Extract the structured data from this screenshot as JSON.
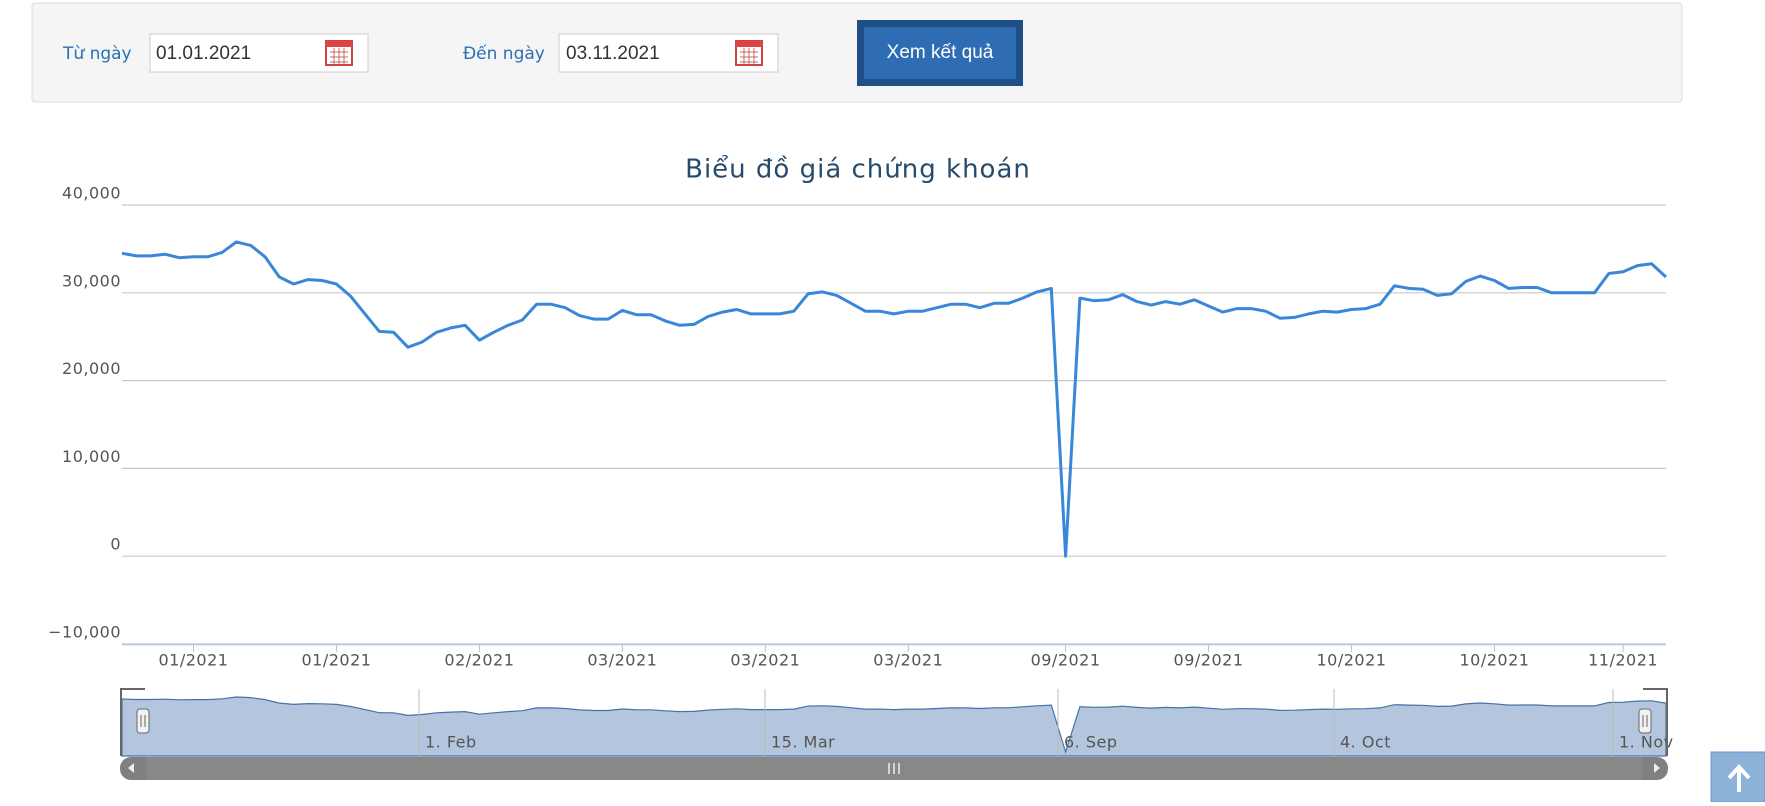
{
  "form": {
    "from_label": "Từ ngày",
    "from_value": "01.01.2021",
    "to_label": "Đến ngày",
    "to_value": "03.11.2021",
    "button": "Xem kết quả"
  },
  "chart_data": {
    "type": "line",
    "title": "Biểu đồ giá chứng khoán",
    "color": "#3a87d9",
    "grid": true,
    "categories": [
      null,
      null,
      null,
      null,
      null,
      "01/2021",
      null,
      null,
      null,
      null,
      null,
      null,
      null,
      null,
      null,
      "01/2021",
      null,
      null,
      null,
      null,
      null,
      null,
      null,
      null,
      null,
      "02/2021",
      null,
      null,
      null,
      null,
      null,
      null,
      null,
      null,
      null,
      "03/2021",
      null,
      null,
      null,
      null,
      null,
      null,
      null,
      null,
      null,
      "03/2021",
      null,
      null,
      null,
      null,
      null,
      null,
      null,
      null,
      null,
      "03/2021",
      null,
      null,
      null,
      null,
      null,
      null,
      null,
      null,
      null,
      null,
      "09/2021",
      null,
      null,
      null,
      null,
      null,
      null,
      null,
      null,
      null,
      "09/2021",
      null,
      null,
      null,
      null,
      null,
      null,
      null,
      null,
      null,
      "10/2021",
      null,
      null,
      null,
      null,
      null,
      null,
      null,
      null,
      null,
      "10/2021",
      null,
      null,
      null,
      null,
      null,
      null,
      null,
      null,
      "11/2021",
      null,
      null,
      null
    ],
    "values": [
      34500,
      34200,
      34200,
      34400,
      34000,
      34100,
      34100,
      34600,
      35800,
      35400,
      34100,
      31800,
      31000,
      31500,
      31400,
      31000,
      29600,
      27600,
      25600,
      25500,
      23800,
      24400,
      25500,
      26000,
      26300,
      24600,
      25500,
      26300,
      26900,
      28700,
      28700,
      28300,
      27400,
      27000,
      27000,
      28000,
      27500,
      27500,
      26800,
      26300,
      26400,
      27300,
      27800,
      28100,
      27600,
      27600,
      27600,
      27900,
      29900,
      30100,
      29700,
      28800,
      27900,
      27900,
      27600,
      27900,
      27900,
      28300,
      28700,
      28700,
      28300,
      28800,
      28800,
      29400,
      30100,
      30500,
      0,
      29400,
      29100,
      29200,
      29800,
      29000,
      28600,
      29000,
      28700,
      29200,
      28500,
      27800,
      28200,
      28200,
      27900,
      27100,
      27200,
      27600,
      27900,
      27800,
      28100,
      28200,
      28700,
      30800,
      30500,
      30400,
      29700,
      29900,
      31300,
      31900,
      31400,
      30500,
      30600,
      30600,
      30000,
      30000,
      30000,
      30000,
      32200,
      32400,
      33100,
      33300,
      31800
    ],
    "ylim": [
      -10000,
      40000
    ],
    "yticks": [
      {
        "value": -10000,
        "label": "−10,000"
      },
      0,
      {
        "value": 10000,
        "label": "10,000"
      },
      {
        "value": 20000,
        "label": "20,000"
      },
      {
        "value": 30000,
        "label": "30,000"
      },
      {
        "value": 40000,
        "label": "40,000"
      }
    ],
    "navigator_labels": [
      "1. Feb",
      "15. Mar",
      "6. Sep",
      "4. Oct",
      "1. Nov"
    ]
  }
}
